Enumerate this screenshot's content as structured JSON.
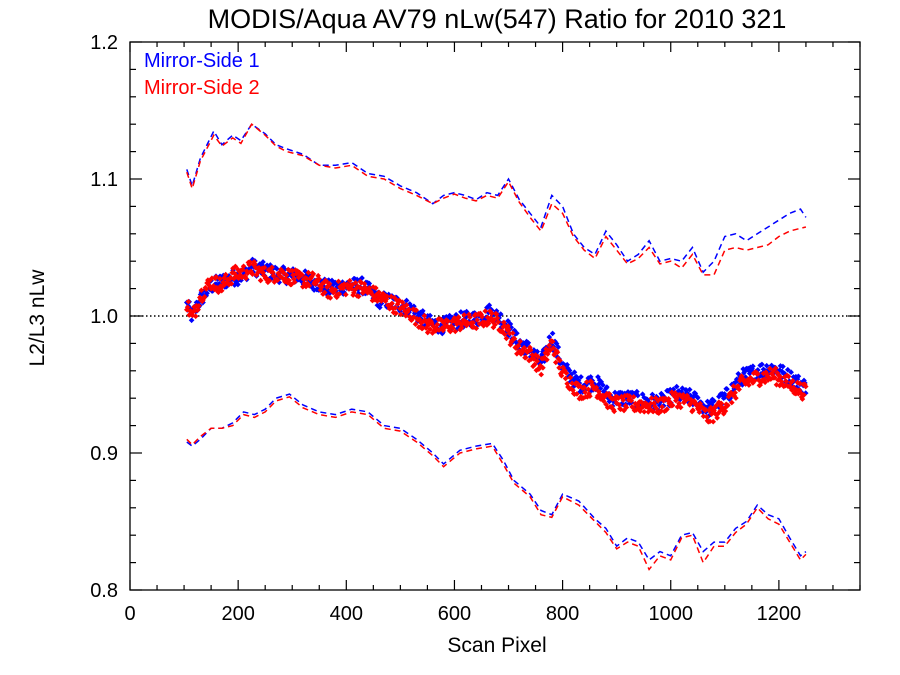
{
  "chart_data": {
    "type": "scatter",
    "title": "MODIS/Aqua AV79 nLw(547) Ratio for 2010 321",
    "xlabel": "Scan Pixel",
    "ylabel": "L2/L3 nLw",
    "xlim": [
      0,
      1350
    ],
    "ylim": [
      0.8,
      1.2
    ],
    "x_ticks": [
      0,
      200,
      400,
      600,
      800,
      1000,
      1200
    ],
    "y_ticks": [
      0.8,
      0.9,
      1.0,
      1.1,
      1.2
    ],
    "x_tick_labels": [
      "0",
      "200",
      "400",
      "600",
      "800",
      "1000",
      "1200"
    ],
    "y_tick_labels": [
      "0.8",
      "0.9",
      "1.0",
      "1.1",
      "1.2"
    ],
    "reference_line": 1.0,
    "legend_position": "top-left",
    "colors": {
      "ms1": "#0000ff",
      "ms2": "#ff0000"
    },
    "series": [
      {
        "name": "Mirror-Side 1",
        "color": "#0000ff",
        "mean": {
          "x": [
            105,
            115,
            130,
            150,
            170,
            190,
            210,
            225,
            250,
            280,
            310,
            340,
            370,
            400,
            430,
            460,
            490,
            520,
            550,
            580,
            610,
            640,
            665,
            690,
            715,
            740,
            760,
            780,
            800,
            830,
            860,
            890,
            920,
            950,
            980,
            1010,
            1040,
            1070,
            1100,
            1130,
            1160,
            1190,
            1220,
            1250
          ],
          "y": [
            1.008,
            1.0,
            1.012,
            1.022,
            1.025,
            1.028,
            1.03,
            1.036,
            1.033,
            1.03,
            1.029,
            1.025,
            1.02,
            1.022,
            1.022,
            1.012,
            1.01,
            1.005,
            0.995,
            0.993,
            0.997,
            0.998,
            1.003,
            0.997,
            0.982,
            0.975,
            0.965,
            0.985,
            0.963,
            0.95,
            0.952,
            0.94,
            0.94,
            0.938,
            0.937,
            0.943,
            0.94,
            0.932,
            0.94,
            0.955,
            0.96,
            0.962,
            0.955,
            0.948
          ]
        },
        "upper": {
          "x": [
            105,
            115,
            130,
            155,
            170,
            190,
            205,
            225,
            250,
            270,
            290,
            320,
            350,
            380,
            410,
            440,
            470,
            500,
            530,
            560,
            580,
            600,
            620,
            640,
            660,
            680,
            700,
            720,
            740,
            760,
            780,
            800,
            820,
            840,
            860,
            880,
            900,
            920,
            940,
            960,
            980,
            1000,
            1020,
            1040,
            1060,
            1080,
            1100,
            1120,
            1140,
            1160,
            1180,
            1200,
            1220,
            1240,
            1250
          ],
          "y": [
            1.107,
            1.095,
            1.115,
            1.135,
            1.125,
            1.132,
            1.128,
            1.14,
            1.133,
            1.125,
            1.122,
            1.118,
            1.11,
            1.11,
            1.112,
            1.104,
            1.102,
            1.095,
            1.09,
            1.082,
            1.088,
            1.09,
            1.088,
            1.085,
            1.09,
            1.088,
            1.1,
            1.085,
            1.075,
            1.065,
            1.088,
            1.08,
            1.06,
            1.05,
            1.045,
            1.062,
            1.052,
            1.04,
            1.045,
            1.055,
            1.04,
            1.042,
            1.04,
            1.05,
            1.032,
            1.04,
            1.058,
            1.06,
            1.055,
            1.06,
            1.065,
            1.07,
            1.075,
            1.078,
            1.072
          ]
        },
        "lower": {
          "x": [
            105,
            115,
            130,
            150,
            170,
            190,
            210,
            230,
            250,
            270,
            295,
            320,
            350,
            380,
            410,
            440,
            470,
            500,
            530,
            560,
            580,
            610,
            640,
            670,
            690,
            710,
            740,
            760,
            780,
            800,
            830,
            860,
            880,
            900,
            920,
            940,
            960,
            980,
            1000,
            1020,
            1040,
            1060,
            1080,
            1100,
            1120,
            1140,
            1160,
            1180,
            1200,
            1220,
            1240,
            1250
          ],
          "y": [
            0.908,
            0.905,
            0.91,
            0.918,
            0.918,
            0.922,
            0.93,
            0.928,
            0.932,
            0.94,
            0.943,
            0.935,
            0.93,
            0.928,
            0.932,
            0.93,
            0.92,
            0.918,
            0.91,
            0.9,
            0.892,
            0.902,
            0.905,
            0.907,
            0.895,
            0.88,
            0.87,
            0.858,
            0.855,
            0.87,
            0.865,
            0.852,
            0.845,
            0.832,
            0.838,
            0.835,
            0.822,
            0.828,
            0.825,
            0.84,
            0.842,
            0.828,
            0.835,
            0.835,
            0.845,
            0.85,
            0.862,
            0.855,
            0.852,
            0.838,
            0.825,
            0.828
          ]
        }
      },
      {
        "name": "Mirror-Side 2",
        "color": "#ff0000",
        "mean": {
          "x": [
            105,
            115,
            130,
            150,
            170,
            190,
            210,
            225,
            250,
            280,
            310,
            340,
            370,
            400,
            430,
            460,
            490,
            520,
            550,
            580,
            610,
            640,
            665,
            690,
            715,
            740,
            760,
            780,
            800,
            830,
            860,
            890,
            920,
            950,
            980,
            1010,
            1040,
            1070,
            1100,
            1130,
            1160,
            1190,
            1220,
            1250
          ],
          "y": [
            1.01,
            0.998,
            1.015,
            1.025,
            1.022,
            1.03,
            1.032,
            1.035,
            1.03,
            1.031,
            1.027,
            1.026,
            1.018,
            1.021,
            1.02,
            1.014,
            1.008,
            1.002,
            0.993,
            0.992,
            0.995,
            0.996,
            0.999,
            0.993,
            0.978,
            0.972,
            0.962,
            0.98,
            0.958,
            0.945,
            0.948,
            0.936,
            0.936,
            0.935,
            0.934,
            0.94,
            0.936,
            0.926,
            0.935,
            0.95,
            0.955,
            0.957,
            0.95,
            0.944
          ]
        },
        "upper": {
          "x": [
            105,
            115,
            130,
            155,
            170,
            190,
            205,
            225,
            250,
            270,
            290,
            320,
            350,
            380,
            410,
            440,
            470,
            500,
            530,
            560,
            580,
            600,
            620,
            640,
            660,
            680,
            700,
            720,
            740,
            760,
            780,
            800,
            820,
            840,
            860,
            880,
            900,
            920,
            940,
            960,
            980,
            1000,
            1020,
            1040,
            1060,
            1080,
            1100,
            1120,
            1140,
            1160,
            1180,
            1200,
            1220,
            1240,
            1250
          ],
          "y": [
            1.105,
            1.093,
            1.113,
            1.132,
            1.124,
            1.13,
            1.126,
            1.14,
            1.132,
            1.124,
            1.12,
            1.117,
            1.11,
            1.108,
            1.11,
            1.102,
            1.1,
            1.093,
            1.088,
            1.082,
            1.086,
            1.089,
            1.086,
            1.084,
            1.088,
            1.086,
            1.098,
            1.083,
            1.072,
            1.062,
            1.082,
            1.075,
            1.058,
            1.048,
            1.042,
            1.058,
            1.048,
            1.038,
            1.042,
            1.05,
            1.038,
            1.04,
            1.035,
            1.045,
            1.03,
            1.03,
            1.048,
            1.05,
            1.048,
            1.05,
            1.052,
            1.058,
            1.062,
            1.064,
            1.065
          ]
        },
        "lower": {
          "x": [
            105,
            115,
            130,
            150,
            170,
            190,
            210,
            230,
            250,
            270,
            295,
            320,
            350,
            380,
            410,
            440,
            470,
            500,
            530,
            560,
            580,
            610,
            640,
            670,
            690,
            710,
            740,
            760,
            780,
            800,
            830,
            860,
            880,
            900,
            920,
            940,
            960,
            980,
            1000,
            1020,
            1040,
            1060,
            1080,
            1100,
            1120,
            1140,
            1160,
            1180,
            1200,
            1220,
            1240,
            1250
          ],
          "y": [
            0.91,
            0.906,
            0.912,
            0.918,
            0.918,
            0.92,
            0.928,
            0.926,
            0.93,
            0.938,
            0.941,
            0.933,
            0.928,
            0.926,
            0.93,
            0.928,
            0.918,
            0.916,
            0.908,
            0.898,
            0.89,
            0.9,
            0.903,
            0.905,
            0.892,
            0.878,
            0.868,
            0.855,
            0.853,
            0.868,
            0.862,
            0.85,
            0.842,
            0.83,
            0.835,
            0.832,
            0.815,
            0.825,
            0.822,
            0.838,
            0.84,
            0.82,
            0.832,
            0.832,
            0.842,
            0.848,
            0.86,
            0.852,
            0.848,
            0.835,
            0.822,
            0.826
          ]
        }
      }
    ]
  }
}
